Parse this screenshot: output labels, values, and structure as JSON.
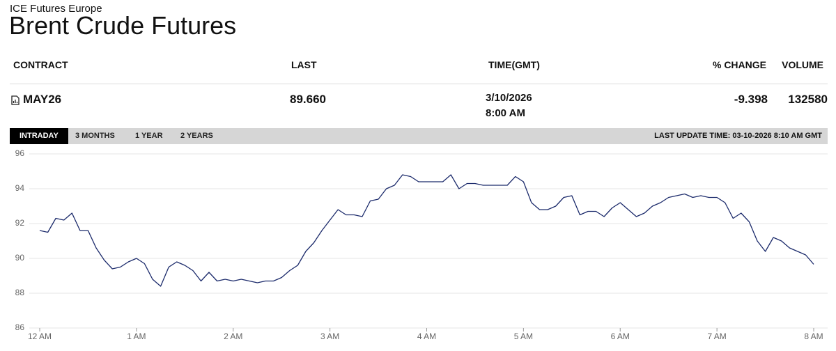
{
  "header": {
    "exchange": "ICE Futures Europe",
    "title": "Brent Crude Futures"
  },
  "table": {
    "columns": [
      "CONTRACT",
      "LAST",
      "TIME(GMT)",
      "% CHANGE",
      "VOLUME"
    ],
    "rows": [
      {
        "contract": "MAY26",
        "last": "89.660",
        "date": "3/10/2026",
        "time": "8:00 AM",
        "change": "-9.398",
        "volume": "132580"
      }
    ]
  },
  "tabs": [
    "INTRADAY",
    "3 MONTHS",
    "1 YEAR",
    "2 YEARS"
  ],
  "active_tab": 0,
  "last_update": "LAST UPDATE TIME: 03-10-2026 8:10 AM GMT",
  "chart_data": {
    "type": "line",
    "color": "#1b2a6b",
    "grid": true,
    "x": [
      0,
      5,
      10,
      15,
      20,
      25,
      30,
      35,
      40,
      45,
      50,
      55,
      60,
      65,
      70,
      75,
      80,
      85,
      90,
      95,
      100,
      105,
      110,
      115,
      120,
      125,
      130,
      135,
      140,
      145,
      150,
      155,
      160,
      165,
      170,
      175,
      180,
      185,
      190,
      195,
      200,
      205,
      210,
      215,
      220,
      225,
      230,
      235,
      240,
      245,
      250,
      255,
      260,
      265,
      270,
      275,
      280,
      285,
      290,
      295,
      300,
      305,
      310,
      315,
      320,
      325,
      330,
      335,
      340,
      345,
      350,
      355,
      360,
      365,
      370,
      375,
      380,
      385,
      390,
      395,
      400,
      405,
      410,
      415,
      420,
      425,
      430,
      435,
      440,
      445,
      450,
      455,
      460,
      465,
      470,
      475,
      480
    ],
    "values": [
      91.6,
      91.5,
      92.3,
      92.2,
      92.6,
      91.6,
      91.6,
      90.6,
      89.9,
      89.4,
      89.5,
      89.8,
      90.0,
      89.7,
      88.8,
      88.4,
      89.5,
      89.8,
      89.6,
      89.3,
      88.7,
      89.2,
      88.7,
      88.8,
      88.7,
      88.8,
      88.7,
      88.6,
      88.7,
      88.7,
      88.9,
      89.3,
      89.6,
      90.4,
      90.9,
      91.6,
      92.2,
      92.8,
      92.5,
      92.5,
      92.4,
      93.3,
      93.4,
      94.0,
      94.2,
      94.8,
      94.7,
      94.4,
      94.4,
      94.4,
      94.4,
      94.8,
      94.0,
      94.3,
      94.3,
      94.2,
      94.2,
      94.2,
      94.2,
      94.7,
      94.4,
      93.2,
      92.8,
      92.8,
      93.0,
      93.5,
      93.6,
      92.5,
      92.7,
      92.7,
      92.4,
      92.9,
      93.2,
      92.8,
      92.4,
      92.6,
      93.0,
      93.2,
      93.5,
      93.6,
      93.7,
      93.5,
      93.6,
      93.5,
      93.5,
      93.2,
      92.3,
      92.6,
      92.1,
      91.0,
      90.4,
      91.2,
      91.0,
      90.6,
      90.4,
      90.2,
      89.66
    ],
    "xlim": [
      0,
      480
    ],
    "xticks": [
      {
        "value": 0,
        "label": "12 AM"
      },
      {
        "value": 60,
        "label": "1 AM"
      },
      {
        "value": 120,
        "label": "2 AM"
      },
      {
        "value": 180,
        "label": "3 AM"
      },
      {
        "value": 240,
        "label": "4 AM"
      },
      {
        "value": 300,
        "label": "5 AM"
      },
      {
        "value": 360,
        "label": "6 AM"
      },
      {
        "value": 420,
        "label": "7 AM"
      },
      {
        "value": 480,
        "label": "8 AM"
      }
    ],
    "ylim": [
      86,
      96
    ],
    "yticks": [
      86,
      88,
      90,
      92,
      94,
      96
    ]
  }
}
